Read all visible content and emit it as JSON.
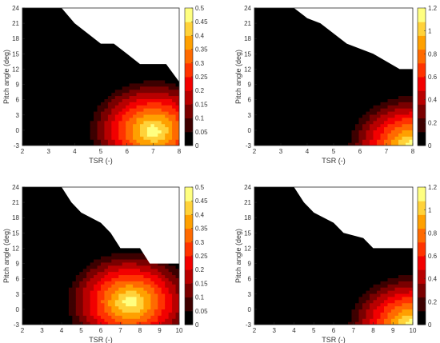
{
  "figure": {
    "colormap": [
      "#000000",
      "#3d0000",
      "#7a0000",
      "#b80000",
      "#f20000",
      "#ff3300",
      "#ff6a00",
      "#ffa000",
      "#ffd23a",
      "#ffff80"
    ]
  },
  "chart_data": [
    {
      "type": "heatmap",
      "title": "",
      "xlabel": "TSR (-)",
      "ylabel": "Pitch angle (deg)",
      "xlim": [
        2,
        8
      ],
      "ylim": [
        -3,
        24
      ],
      "xticks": [
        2,
        3,
        4,
        5,
        6,
        7,
        8
      ],
      "yticks": [
        -3,
        0,
        3,
        6,
        9,
        12,
        15,
        18,
        21,
        24
      ],
      "colorbar": {
        "range": [
          0,
          0.5
        ],
        "ticks": [
          "0",
          "0.05",
          "0.1",
          "0.15",
          "0.2",
          "0.25",
          "0.3",
          "0.35",
          "0.4",
          "0.45",
          "0.5"
        ]
      },
      "peak": {
        "x": 7.0,
        "y": 0,
        "value": 0.48
      },
      "valid_region_boundary": [
        [
          2.5,
          24
        ],
        [
          3.5,
          24
        ],
        [
          4.0,
          21
        ],
        [
          4.5,
          19
        ],
        [
          5.0,
          17
        ],
        [
          5.5,
          17
        ],
        [
          6.0,
          15
        ],
        [
          6.5,
          13
        ],
        [
          7.5,
          13
        ],
        [
          8.0,
          9.5
        ]
      ]
    },
    {
      "type": "heatmap",
      "title": "",
      "xlabel": "TSR (-)",
      "ylabel": "Pitch angle (deg)",
      "xlim": [
        2,
        8
      ],
      "ylim": [
        -3,
        24
      ],
      "xticks": [
        2,
        3,
        4,
        5,
        6,
        7,
        8
      ],
      "yticks": [
        -3,
        0,
        3,
        6,
        9,
        12,
        15,
        18,
        21,
        24
      ],
      "colorbar": {
        "range": [
          0,
          1.2
        ],
        "ticks": [
          "0",
          "0.2",
          "0.4",
          "0.6",
          "0.8",
          "1",
          "1.2"
        ]
      },
      "peak": {
        "x": 8.0,
        "y": -3,
        "value": 1.2
      },
      "valid_region_boundary": [
        [
          3.0,
          24
        ],
        [
          3.5,
          24
        ],
        [
          4.0,
          22
        ],
        [
          4.5,
          21
        ],
        [
          5.0,
          19
        ],
        [
          5.5,
          17
        ],
        [
          6.5,
          15
        ],
        [
          7.5,
          12
        ],
        [
          8.0,
          12
        ]
      ]
    },
    {
      "type": "heatmap",
      "title": "",
      "xlabel": "TSR (-)",
      "ylabel": "Pitch angle (deg)",
      "xlim": [
        2,
        10
      ],
      "ylim": [
        -3,
        24
      ],
      "xticks": [
        2,
        3,
        4,
        5,
        6,
        7,
        8,
        9,
        10
      ],
      "yticks": [
        -3,
        0,
        3,
        6,
        9,
        12,
        15,
        18,
        21,
        24
      ],
      "colorbar": {
        "range": [
          0,
          0.5
        ],
        "ticks": [
          "0",
          "0.05",
          "0.1",
          "0.15",
          "0.2",
          "0.25",
          "0.3",
          "0.35",
          "0.4",
          "0.45",
          "0.5"
        ]
      },
      "peak": {
        "x": 7.5,
        "y": 1.5,
        "value": 0.48
      },
      "valid_region_boundary": [
        [
          3.0,
          24
        ],
        [
          4.0,
          24
        ],
        [
          4.5,
          21
        ],
        [
          5.0,
          19
        ],
        [
          6.0,
          17
        ],
        [
          6.5,
          15
        ],
        [
          7.0,
          12
        ],
        [
          8.0,
          12
        ],
        [
          8.5,
          9
        ],
        [
          10.0,
          9
        ]
      ]
    },
    {
      "type": "heatmap",
      "title": "",
      "xlabel": "TSR (-)",
      "ylabel": "Pitch angle (deg)",
      "xlim": [
        2,
        10
      ],
      "ylim": [
        -3,
        24
      ],
      "xticks": [
        2,
        3,
        4,
        5,
        6,
        7,
        8,
        9,
        10
      ],
      "yticks": [
        -3,
        0,
        3,
        6,
        9,
        12,
        15,
        18,
        21,
        24
      ],
      "colorbar": {
        "range": [
          0,
          1.2
        ],
        "ticks": [
          "0",
          "0.2",
          "0.4",
          "0.6",
          "0.8",
          "1",
          "1.2"
        ]
      },
      "peak": {
        "x": 10.0,
        "y": -3,
        "value": 1.2
      },
      "valid_region_boundary": [
        [
          3.0,
          24
        ],
        [
          4.0,
          24
        ],
        [
          4.5,
          21
        ],
        [
          5.0,
          19
        ],
        [
          6.0,
          17
        ],
        [
          6.5,
          15
        ],
        [
          7.5,
          14
        ],
        [
          8.0,
          12
        ],
        [
          10.0,
          12
        ]
      ]
    }
  ]
}
